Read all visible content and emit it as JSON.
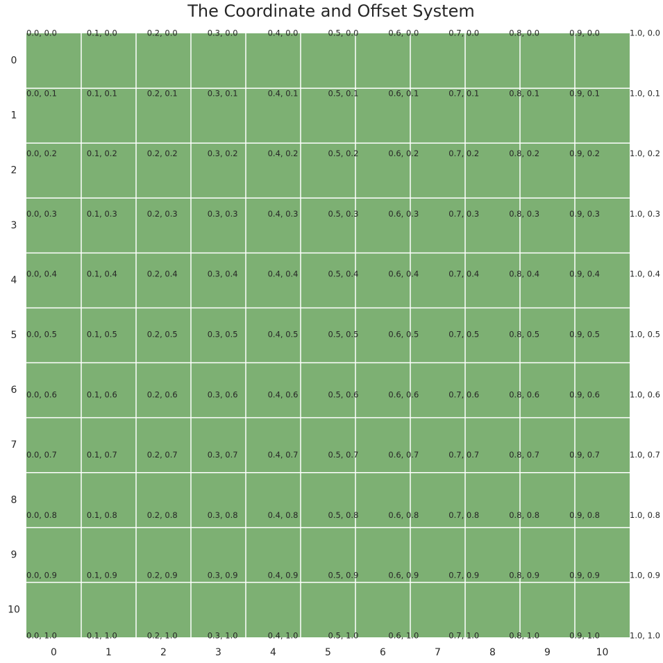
{
  "chart_data": {
    "type": "grid",
    "title": "The Coordinate and Offset System",
    "cell_color": "#7db073",
    "x_labels": [
      "0",
      "1",
      "2",
      "3",
      "4",
      "5",
      "6",
      "7",
      "8",
      "9",
      "10"
    ],
    "y_labels": [
      "0",
      "1",
      "2",
      "3",
      "4",
      "5",
      "6",
      "7",
      "8",
      "9",
      "10"
    ],
    "offset_labels": [
      [
        "0.0, 0.0",
        "0.1, 0.0",
        "0.2, 0.0",
        "0.3, 0.0",
        "0.4, 0.0",
        "0.5, 0.0",
        "0.6, 0.0",
        "0.7, 0.0",
        "0.8, 0.0",
        "0.9, 0.0",
        "1.0, 0.0"
      ],
      [
        "0.0, 0.1",
        "0.1, 0.1",
        "0.2, 0.1",
        "0.3, 0.1",
        "0.4, 0.1",
        "0.5, 0.1",
        "0.6, 0.1",
        "0.7, 0.1",
        "0.8, 0.1",
        "0.9, 0.1",
        "1.0, 0.1"
      ],
      [
        "0.0, 0.2",
        "0.1, 0.2",
        "0.2, 0.2",
        "0.3, 0.2",
        "0.4, 0.2",
        "0.5, 0.2",
        "0.6, 0.2",
        "0.7, 0.2",
        "0.8, 0.2",
        "0.9, 0.2",
        "1.0, 0.2"
      ],
      [
        "0.0, 0.3",
        "0.1, 0.3",
        "0.2, 0.3",
        "0.3, 0.3",
        "0.4, 0.3",
        "0.5, 0.3",
        "0.6, 0.3",
        "0.7, 0.3",
        "0.8, 0.3",
        "0.9, 0.3",
        "1.0, 0.3"
      ],
      [
        "0.0, 0.4",
        "0.1, 0.4",
        "0.2, 0.4",
        "0.3, 0.4",
        "0.4, 0.4",
        "0.5, 0.4",
        "0.6, 0.4",
        "0.7, 0.4",
        "0.8, 0.4",
        "0.9, 0.4",
        "1.0, 0.4"
      ],
      [
        "0.0, 0.5",
        "0.1, 0.5",
        "0.2, 0.5",
        "0.3, 0.5",
        "0.4, 0.5",
        "0.5, 0.5",
        "0.6, 0.5",
        "0.7, 0.5",
        "0.8, 0.5",
        "0.9, 0.5",
        "1.0, 0.5"
      ],
      [
        "0.0, 0.6",
        "0.1, 0.6",
        "0.2, 0.6",
        "0.3, 0.6",
        "0.4, 0.6",
        "0.5, 0.6",
        "0.6, 0.6",
        "0.7, 0.6",
        "0.8, 0.6",
        "0.9, 0.6",
        "1.0, 0.6"
      ],
      [
        "0.0, 0.7",
        "0.1, 0.7",
        "0.2, 0.7",
        "0.3, 0.7",
        "0.4, 0.7",
        "0.5, 0.7",
        "0.6, 0.7",
        "0.7, 0.7",
        "0.8, 0.7",
        "0.9, 0.7",
        "1.0, 0.7"
      ],
      [
        "0.0, 0.8",
        "0.1, 0.8",
        "0.2, 0.8",
        "0.3, 0.8",
        "0.4, 0.8",
        "0.5, 0.8",
        "0.6, 0.8",
        "0.7, 0.8",
        "0.8, 0.8",
        "0.9, 0.8",
        "1.0, 0.8"
      ],
      [
        "0.0, 0.9",
        "0.1, 0.9",
        "0.2, 0.9",
        "0.3, 0.9",
        "0.4, 0.9",
        "0.5, 0.9",
        "0.6, 0.9",
        "0.7, 0.9",
        "0.8, 0.9",
        "0.9, 0.9",
        "1.0, 0.9"
      ],
      [
        "0.0, 1.0",
        "0.1, 1.0",
        "0.2, 1.0",
        "0.3, 1.0",
        "0.4, 1.0",
        "0.5, 1.0",
        "0.6, 1.0",
        "0.7, 1.0",
        "0.8, 1.0",
        "0.9, 1.0",
        "1.0, 1.0"
      ]
    ]
  }
}
